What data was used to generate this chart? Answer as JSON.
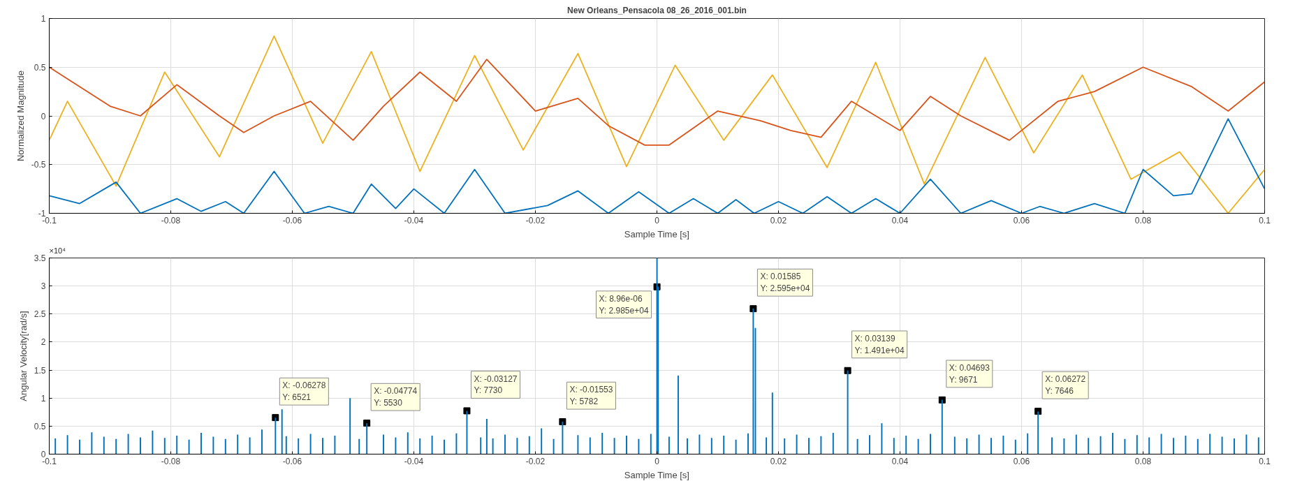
{
  "chart_data": [
    {
      "type": "line",
      "title": "New Orleans_Pensacola 08_26_2016_001.bin",
      "xlabel": "Sample Time [s]",
      "ylabel": "Normalized Magnitude",
      "xlim": [
        -0.1,
        0.1
      ],
      "ylim": [
        -1,
        1
      ],
      "xticks": [
        -0.1,
        -0.08,
        -0.06,
        -0.04,
        -0.02,
        0,
        0.02,
        0.04,
        0.06,
        0.08,
        0.1
      ],
      "yticks": [
        -1,
        -0.5,
        0,
        0.5,
        1
      ],
      "grid": true,
      "series": [
        {
          "color": "#edb120",
          "x": [
            -0.1,
            -0.097,
            -0.089,
            -0.081,
            -0.072,
            -0.063,
            -0.055,
            -0.047,
            -0.039,
            -0.03,
            -0.022,
            -0.013,
            -0.005,
            0.003,
            0.011,
            0.019,
            0.028,
            0.036,
            0.044,
            0.054,
            0.062,
            0.07,
            0.078,
            0.086,
            0.094,
            0.1
          ],
          "values": [
            -0.25,
            0.15,
            -0.72,
            0.45,
            -0.42,
            0.82,
            -0.28,
            0.66,
            -0.57,
            0.62,
            -0.35,
            0.64,
            -0.52,
            0.52,
            -0.25,
            0.42,
            -0.53,
            0.55,
            -0.7,
            0.6,
            -0.38,
            0.42,
            -0.65,
            -0.37,
            -1.0,
            -0.55
          ]
        },
        {
          "color": "#d95319",
          "x": [
            -0.1,
            -0.09,
            -0.085,
            -0.079,
            -0.072,
            -0.068,
            -0.063,
            -0.057,
            -0.05,
            -0.045,
            -0.039,
            -0.033,
            -0.028,
            -0.02,
            -0.013,
            -0.008,
            -0.002,
            0.002,
            0.01,
            0.017,
            0.022,
            0.027,
            0.032,
            0.04,
            0.045,
            0.05,
            0.058,
            0.066,
            0.072,
            0.08,
            0.088,
            0.094,
            0.1
          ],
          "values": [
            0.5,
            0.1,
            0.0,
            0.32,
            0.0,
            -0.17,
            0.0,
            0.15,
            -0.25,
            0.1,
            0.45,
            0.15,
            0.58,
            0.05,
            0.18,
            -0.1,
            -0.3,
            -0.3,
            0.05,
            -0.05,
            -0.15,
            -0.22,
            0.15,
            -0.15,
            0.2,
            0.0,
            -0.25,
            0.15,
            0.25,
            0.5,
            0.3,
            0.05,
            0.35
          ]
        },
        {
          "color": "#0072bd",
          "x": [
            -0.1,
            -0.095,
            -0.089,
            -0.085,
            -0.079,
            -0.075,
            -0.071,
            -0.068,
            -0.063,
            -0.058,
            -0.054,
            -0.05,
            -0.047,
            -0.043,
            -0.04,
            -0.035,
            -0.03,
            -0.025,
            -0.018,
            -0.013,
            -0.008,
            -0.003,
            0.002,
            0.006,
            0.01,
            0.013,
            0.016,
            0.02,
            0.024,
            0.028,
            0.032,
            0.036,
            0.04,
            0.045,
            0.05,
            0.055,
            0.06,
            0.063,
            0.067,
            0.072,
            0.077,
            0.08,
            0.085,
            0.088,
            0.094,
            0.1
          ],
          "values": [
            -0.82,
            -0.9,
            -0.68,
            -1.0,
            -0.85,
            -0.98,
            -0.88,
            -1.0,
            -0.57,
            -1.0,
            -0.93,
            -1.0,
            -0.7,
            -0.95,
            -0.75,
            -1.0,
            -0.55,
            -1.0,
            -0.92,
            -0.77,
            -1.0,
            -0.78,
            -1.0,
            -0.85,
            -1.0,
            -0.86,
            -1.0,
            -0.88,
            -1.0,
            -0.83,
            -1.0,
            -0.85,
            -1.0,
            -0.65,
            -1.0,
            -0.87,
            -1.0,
            -0.93,
            -1.0,
            -0.9,
            -1.0,
            -0.55,
            -0.82,
            -0.8,
            -0.03,
            -0.75
          ]
        }
      ]
    },
    {
      "type": "bar",
      "xlabel": "Sample Time [s]",
      "ylabel": "Angular Velocity[rad/s]",
      "xlim": [
        -0.1,
        0.1
      ],
      "ylim": [
        0,
        3.5
      ],
      "xticks": [
        -0.1,
        -0.08,
        -0.06,
        -0.04,
        -0.02,
        0,
        0.02,
        0.04,
        0.06,
        0.08,
        0.1
      ],
      "yticks": [
        0,
        0.5,
        1,
        1.5,
        2,
        2.5,
        3,
        3.5
      ],
      "grid": true,
      "annotations": [
        "×10⁴",
        {
          "text": "X: -0.06278\nY: 6521",
          "x": -0.06278,
          "y": 0.6521
        },
        {
          "text": "X: -0.04774\nY: 5530",
          "x": -0.04774,
          "y": 0.553
        },
        {
          "text": "X: -0.03127\nY: 7730",
          "x": -0.03127,
          "y": 0.773
        },
        {
          "text": "X: -0.01553\nY: 5782",
          "x": -0.01553,
          "y": 0.5782
        },
        {
          "text": "X: 8.96e-06\nY: 2.985e+04",
          "x": 8.96e-06,
          "y": 2.985
        },
        {
          "text": "X: 0.01585\nY: 2.595e+04",
          "x": 0.01585,
          "y": 2.595
        },
        {
          "text": "X: 0.03139\nY: 1.491e+04",
          "x": 0.03139,
          "y": 1.491
        },
        {
          "text": "X: 0.04693\nY: 9671",
          "x": 0.04693,
          "y": 0.9671
        },
        {
          "text": "X: 0.06272\nY: 7646",
          "x": 0.06272,
          "y": 0.7646
        }
      ],
      "series": [
        {
          "color": "#0072bd",
          "x": [
            -0.099,
            -0.097,
            -0.095,
            -0.093,
            -0.091,
            -0.089,
            -0.087,
            -0.085,
            -0.083,
            -0.081,
            -0.079,
            -0.077,
            -0.075,
            -0.073,
            -0.071,
            -0.069,
            -0.067,
            -0.065,
            -0.061,
            -0.059,
            -0.057,
            -0.055,
            -0.053,
            -0.049,
            -0.045,
            -0.043,
            -0.041,
            -0.039,
            -0.037,
            -0.035,
            -0.033,
            -0.029,
            -0.027,
            -0.025,
            -0.023,
            -0.021,
            -0.019,
            -0.017,
            -0.013,
            -0.011,
            -0.009,
            -0.007,
            -0.005,
            -0.003,
            -0.001,
            0.002,
            0.005,
            0.007,
            0.009,
            0.011,
            0.013,
            0.015,
            0.018,
            0.021,
            0.023,
            0.025,
            0.027,
            0.029,
            0.033,
            0.035,
            0.037,
            0.039,
            0.041,
            0.043,
            0.045,
            0.049,
            0.051,
            0.053,
            0.055,
            0.057,
            0.059,
            0.061,
            0.065,
            0.067,
            0.069,
            0.071,
            0.073,
            0.075,
            0.077,
            0.079,
            0.081,
            0.083,
            0.085,
            0.087,
            0.089,
            0.091,
            0.093,
            0.095,
            0.097,
            0.099
          ],
          "values": [
            0.28,
            0.34,
            0.26,
            0.39,
            0.31,
            0.27,
            0.36,
            0.3,
            0.42,
            0.29,
            0.33,
            0.26,
            0.38,
            0.31,
            0.27,
            0.35,
            0.3,
            0.44,
            0.32,
            0.28,
            0.36,
            0.29,
            0.33,
            0.27,
            0.35,
            0.3,
            0.39,
            0.28,
            0.33,
            0.26,
            0.37,
            0.3,
            0.28,
            0.35,
            0.29,
            0.32,
            0.46,
            0.27,
            0.34,
            0.3,
            0.38,
            0.29,
            0.33,
            0.27,
            0.36,
            0.31,
            0.28,
            0.35,
            0.29,
            0.33,
            0.26,
            0.37,
            0.3,
            0.28,
            0.35,
            0.29,
            0.32,
            0.38,
            0.27,
            0.34,
            0.55,
            0.29,
            0.33,
            0.27,
            0.36,
            0.31,
            0.28,
            0.35,
            0.29,
            0.33,
            0.26,
            0.37,
            0.3,
            0.28,
            0.35,
            0.29,
            0.32,
            0.38,
            0.27,
            0.34,
            0.3,
            0.36,
            0.29,
            0.33,
            0.27,
            0.36,
            0.31,
            0.28,
            0.35,
            0.3
          ]
        },
        {
          "color": "#0072bd",
          "x": [
            -0.06278,
            -0.0617,
            -0.0505,
            -0.04774,
            -0.03127,
            -0.028,
            -0.01553,
            8.96e-06,
            0.0002,
            0.0035,
            0.01585,
            0.0162,
            0.019,
            0.03139,
            0.04693,
            0.06272
          ],
          "values": [
            0.65,
            0.8,
            1.0,
            0.55,
            0.77,
            0.63,
            0.58,
            3.5,
            2.99,
            1.4,
            2.6,
            2.25,
            1.1,
            1.49,
            0.97,
            0.76
          ]
        }
      ]
    }
  ]
}
